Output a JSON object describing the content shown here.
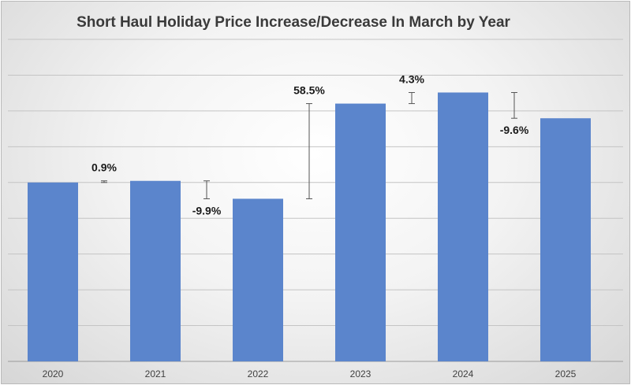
{
  "chart_data": {
    "type": "bar",
    "title": "Short Haul Holiday Price Increase/Decrease In March by Year",
    "xlabel": "",
    "ylabel": "",
    "categories": [
      "2020",
      "2021",
      "2022",
      "2023",
      "2024",
      "2025"
    ],
    "values": [
      100,
      100.9,
      90.9,
      144.1,
      150.3,
      135.9
    ],
    "ylim": [
      0,
      180
    ],
    "grid": true,
    "legend": "none",
    "changes": [
      {
        "label": "0.9%",
        "from": 100,
        "to": 100.9
      },
      {
        "label": "-9.9%",
        "from": 100.9,
        "to": 90.9
      },
      {
        "label": "58.5%",
        "from": 90.9,
        "to": 144.1
      },
      {
        "label": "4.3%",
        "from": 144.1,
        "to": 150.3
      },
      {
        "label": "-9.6%",
        "from": 150.3,
        "to": 135.9
      }
    ],
    "colors": {
      "bar": "#5b85cc",
      "grid": "#c4c4c4",
      "connector": "#555555"
    }
  }
}
